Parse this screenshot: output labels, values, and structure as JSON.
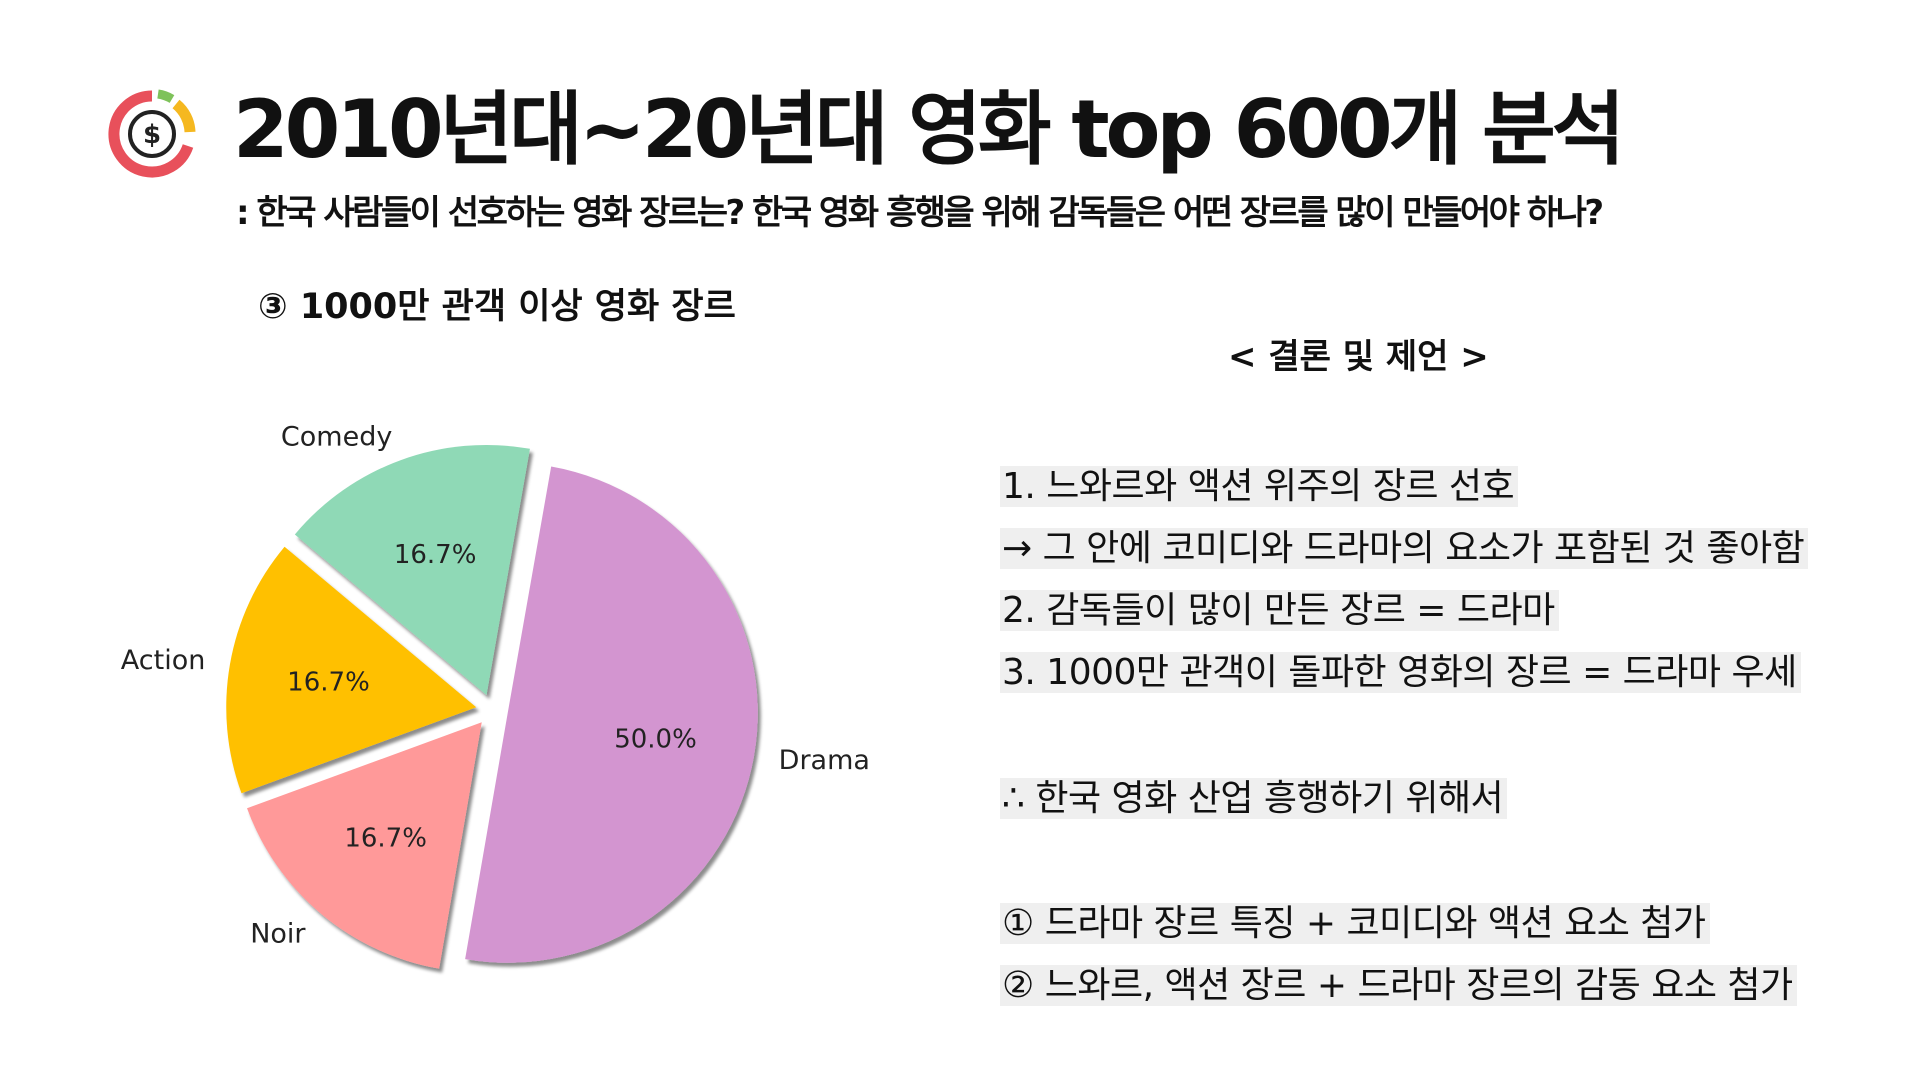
{
  "header": {
    "title": "2010년대~20년대 영화 top 600개 분석",
    "subtitle": ": 한국 사람들이 선호하는 영화 장르는? 한국 영화 흥행을 위해 감독들은 어떤 장르를 많이 만들어야 하나?",
    "logo_icon": "dollar-donut-chart-icon"
  },
  "chart_heading": "③ 1000만 관객 이상 영화 장르",
  "chart_data": {
    "type": "pie",
    "categories": [
      "Comedy",
      "Action",
      "Noir",
      "Drama"
    ],
    "values": [
      16.7,
      16.7,
      16.7,
      50.0
    ],
    "labels": [
      "16.7%",
      "16.7%",
      "16.7%",
      "50.0%"
    ],
    "colors": [
      "#8fd9b6",
      "#ffc000",
      "#ff9999",
      "#d395d0"
    ],
    "explode": true,
    "shadow": true
  },
  "conclusion": {
    "heading": "< 결론 및 제언 >",
    "lines": [
      "1. 느와르와 액션 위주의 장르 선호",
      "→ 그 안에 코미디와 드라마의 요소가 포함된 것 좋아함",
      "2. 감독들이 많이 만든 장르 = 드라마",
      "3. 1000만 관객이 돌파한 영화의 장르 = 드라마 우세",
      "∴ 한국 영화 산업 흥행하기 위해서",
      "① 드라마 장르 특징 + 코미디와 액션 요소 첨가",
      "② 느와르, 액션 장르 + 드라마 장르의 감동 요소 첨가"
    ]
  }
}
